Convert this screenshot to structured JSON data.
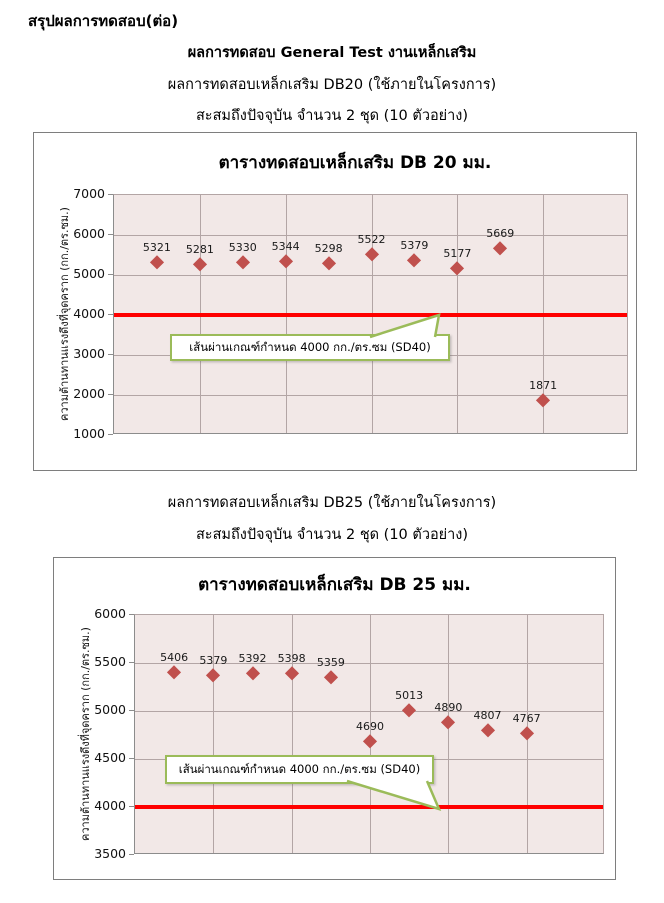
{
  "page": {
    "heading": "สรุปผลการทดสอบ(ต่อ)",
    "main_title": "ผลการทดสอบ General Test งานเหล็กเสริม",
    "section1_line1": "ผลการทดสอบเหล็กเสริม DB20 (ใช้ภายในโครงการ)",
    "section1_line2": "สะสมถึงปัจจุบัน จำนวน 2 ชุด (10 ตัวอย่าง)",
    "section2_line1": "ผลการทดสอบเหล็กเสริม DB25 (ใช้ภายในโครงการ)",
    "section2_line2": "สะสมถึงปัจจุบัน จำนวน 2 ชุด (10 ตัวอย่าง)"
  },
  "colors": {
    "marker": "#C0504D",
    "threshold": "#FF0000",
    "callout_border": "#9BBB59",
    "plot_background": "#F2E8E7",
    "gridline": "#B3A5A5"
  },
  "chart_data": [
    {
      "type": "scatter",
      "title": "ตารางทดสอบเหล็กเสริม DB 20 มม.",
      "ylabel": "ความต้านทานแรงดึงที่จุดคราก  (กก./ตร.ซม.)",
      "x": [
        1,
        2,
        3,
        4,
        5,
        6,
        7,
        8,
        9,
        10
      ],
      "values": [
        5321,
        5281,
        5330,
        5344,
        5298,
        5522,
        5379,
        5177,
        5669,
        1871
      ],
      "point_labels": [
        "5321",
        "5281",
        "5330",
        "5344",
        "5298",
        "5522",
        "5379",
        "5177",
        "5669",
        "1871"
      ],
      "ylim": [
        1000,
        7000
      ],
      "yticks": [
        7000,
        6000,
        5000,
        4000,
        3000,
        2000,
        1000
      ],
      "xlim": [
        0,
        12
      ],
      "xgrid_step": 2,
      "grid": true,
      "legend": false,
      "marker": "diamond",
      "threshold": {
        "value": 4000,
        "label": "เส้นผ่านเกณฑ์กำหนด 4000 กก./ตร.ซม (SD40)"
      }
    },
    {
      "type": "scatter",
      "title": "ตารางทดสอบเหล็กเสริม DB 25 มม.",
      "ylabel": "ความต้านทานแรงดึงที่จุดคราก  (กก./ตร.ซม.)",
      "x": [
        1,
        2,
        3,
        4,
        5,
        6,
        7,
        8,
        9,
        10
      ],
      "values": [
        5406,
        5379,
        5392,
        5398,
        5359,
        4690,
        5013,
        4890,
        4807,
        4767
      ],
      "point_labels": [
        "5406",
        "5379",
        "5392",
        "5398",
        "5359",
        "4690",
        "5013",
        "4890",
        "4807",
        "4767"
      ],
      "ylim": [
        3500,
        6000
      ],
      "yticks": [
        6000,
        5500,
        5000,
        4500,
        4000,
        3500
      ],
      "xlim": [
        0,
        12
      ],
      "xgrid_step": 2,
      "grid": true,
      "legend": false,
      "marker": "diamond",
      "threshold": {
        "value": 4000,
        "label": "เส้นผ่านเกณฑ์กำหนด 4000 กก./ตร.ซม (SD40)"
      }
    }
  ]
}
